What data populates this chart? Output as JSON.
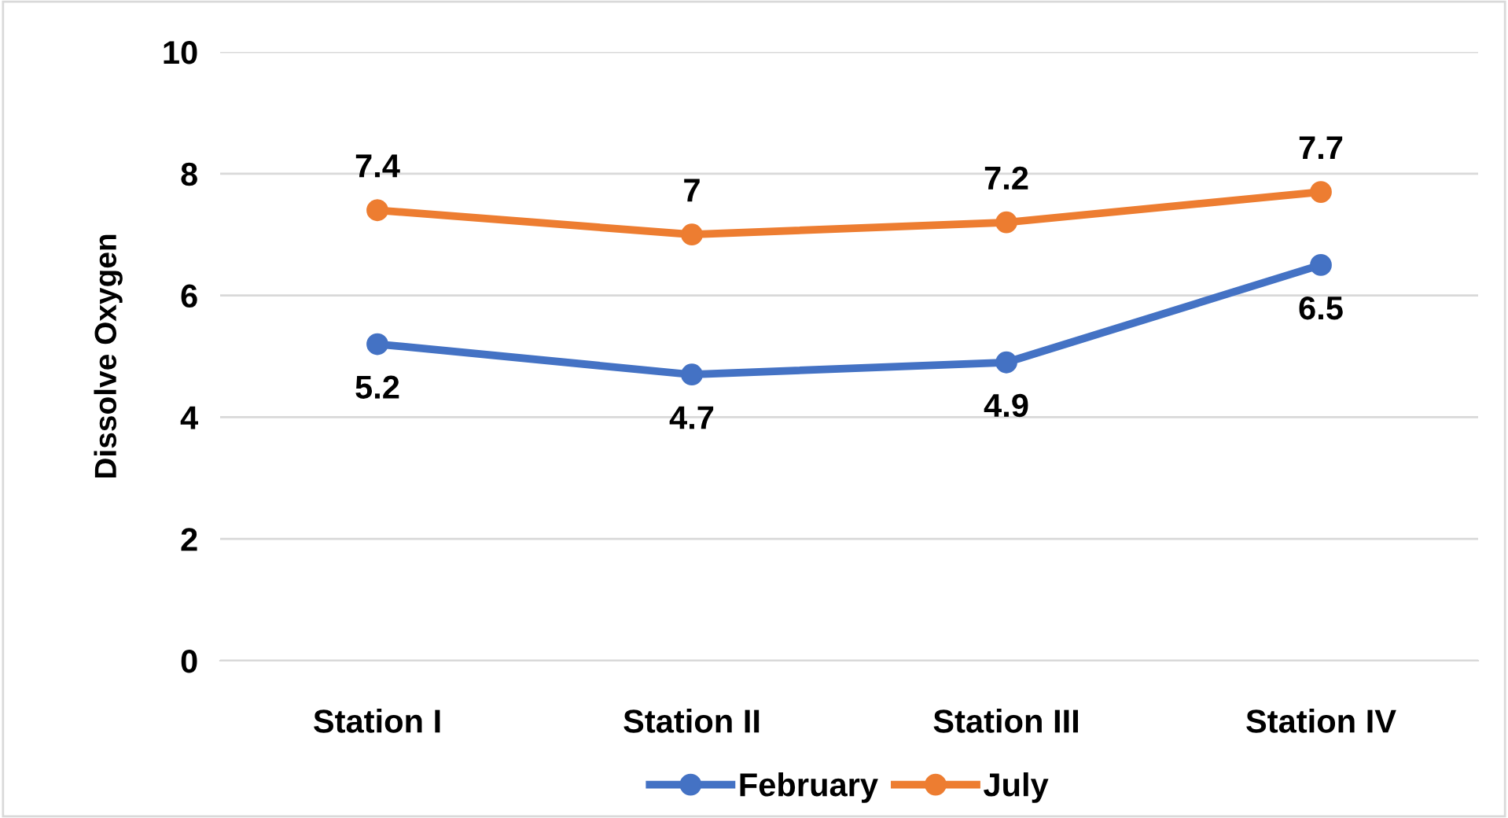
{
  "chart_data": {
    "type": "line",
    "ylabel": "Dissolve Oxygen",
    "categories": [
      "Station I",
      "Station II",
      "Station III",
      "Station IV"
    ],
    "series": [
      {
        "name": "February",
        "color": "#4472c4",
        "values": [
          5.2,
          4.7,
          4.9,
          6.5
        ]
      },
      {
        "name": "July",
        "color": "#ed7d31",
        "values": [
          7.4,
          7,
          7.2,
          7.7
        ]
      }
    ],
    "ylim": [
      0,
      10
    ],
    "yticks": [
      0,
      2,
      4,
      6,
      8,
      10
    ],
    "grid": "y",
    "legend": "bottom",
    "marker": "circle",
    "line_style": "solid",
    "data_labels": true
  }
}
